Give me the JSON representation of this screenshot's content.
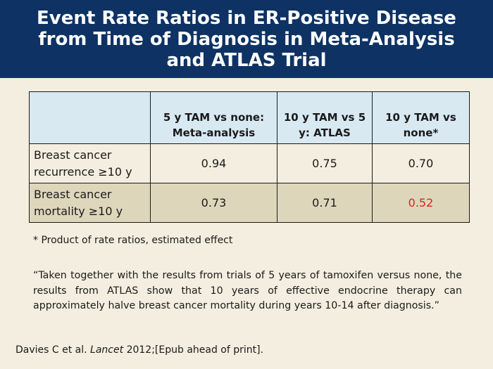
{
  "title": "Event Rate Ratios in ER-Positive Disease from Time of Diagnosis in Meta-Analysis and ATLAS Trial",
  "table": {
    "headers": [
      "",
      "5 y TAM vs none: Meta-analysis",
      "10 y TAM vs 5 y: ATLAS",
      "10 y TAM vs none*"
    ],
    "rows": [
      {
        "label": "Breast cancer recurrence ≥10 y",
        "values": [
          "0.94",
          "0.75",
          "0.70"
        ]
      },
      {
        "label": "Breast cancer mortality ≥10 y",
        "values": [
          "0.73",
          "0.71",
          "0.52"
        ]
      }
    ],
    "highlight_color": "#e02020"
  },
  "footnote": "* Product of rate ratios, estimated effect",
  "quote": "“Taken together with the results from trials of 5 years of tamoxifen versus none, the results from ATLAS show that 10 years of effective endocrine therapy can approximately halve breast cancer mortality during years 10-14 after diagnosis.”",
  "citation": {
    "authors": "Davies C et al.",
    "journal": "Lancet",
    "rest": "2012;[Epub ahead of print]."
  },
  "colors": {
    "title_bar": "#0d3263",
    "background": "#f3eedf",
    "header_fill": "#d8e9f2",
    "alt_row_fill": "#ded6bb"
  }
}
